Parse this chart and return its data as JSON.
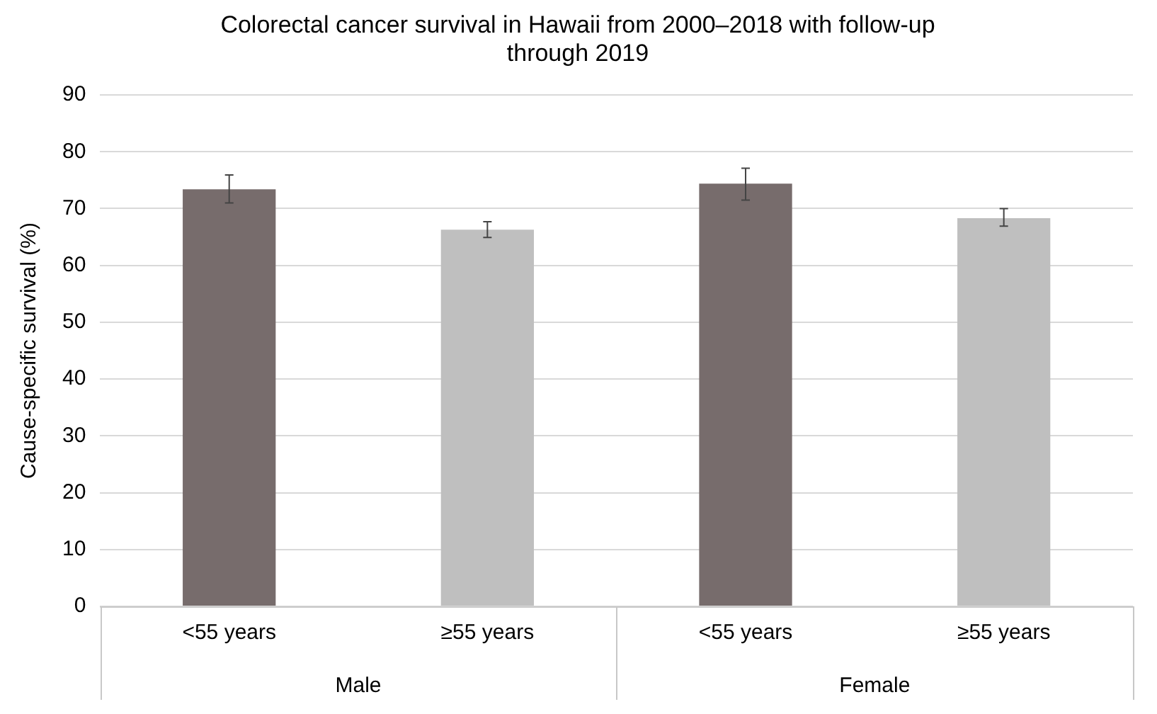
{
  "chart_data": {
    "type": "bar",
    "title": "Colorectal cancer survival in Hawaii from 2000–2018 with follow-up through 2019",
    "ylabel": "Cause-specific survival (%)",
    "categories": [
      "<55 years",
      "≥55 years",
      "<55 years",
      "≥55 years"
    ],
    "values": [
      73.4,
      66.3,
      74.4,
      68.3
    ],
    "colors": [
      "#776c6c",
      "#bfbfbf",
      "#776c6c",
      "#bfbfbf"
    ],
    "errors": [
      [
        71.0,
        75.9
      ],
      [
        64.9,
        67.7
      ],
      [
        71.5,
        77.1
      ],
      [
        66.9,
        70.0
      ]
    ],
    "annotations": [
      "Male",
      "Female"
    ],
    "ylim": [
      0,
      90
    ],
    "yticks": [
      0,
      10,
      20,
      30,
      40,
      50,
      60,
      70,
      80,
      90
    ],
    "grid": "y",
    "legend": false
  }
}
